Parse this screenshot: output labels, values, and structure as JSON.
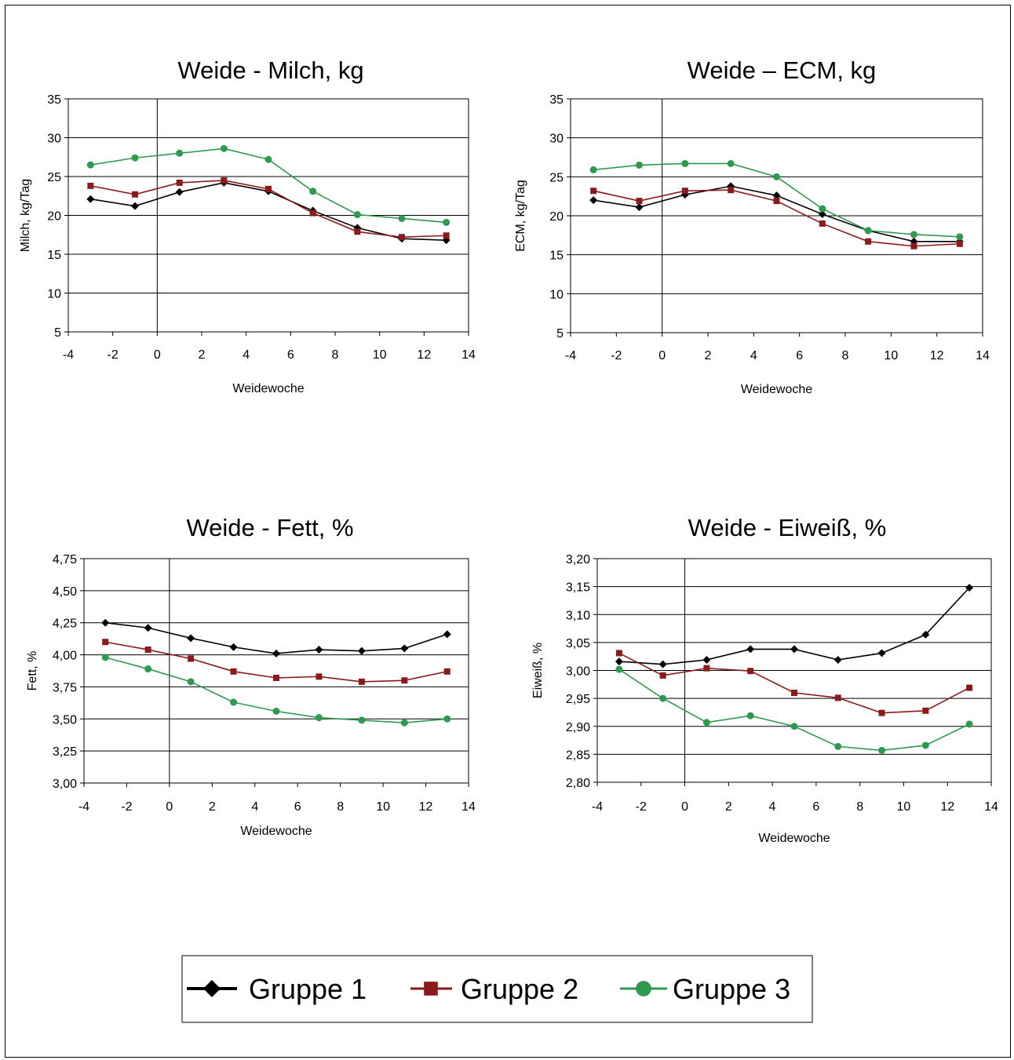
{
  "colors": {
    "gruppe1": "#000000",
    "gruppe2": "#8B1A1A",
    "gruppe3": "#2E9A4E"
  },
  "legend": [
    {
      "name": "Gruppe 1",
      "marker": "diamond",
      "color": "#000000"
    },
    {
      "name": "Gruppe 2",
      "marker": "square",
      "color": "#8B1A1A"
    },
    {
      "name": "Gruppe 3",
      "marker": "circle",
      "color": "#2E9A4E"
    }
  ],
  "chart_data": [
    {
      "type": "line",
      "title": "Weide - Milch, kg",
      "xlabel": "Weidewoche",
      "ylabel": "Milch, kg/Tag",
      "xlim": [
        -4,
        14
      ],
      "ylim": [
        5,
        35
      ],
      "xticks": [
        "-4",
        "-2",
        "0",
        "2",
        "4",
        "6",
        "8",
        "10",
        "12",
        "14"
      ],
      "yticks": [
        "5",
        "10",
        "15",
        "20",
        "25",
        "30",
        "35"
      ],
      "x": [
        -3,
        -1,
        1,
        3,
        5,
        7,
        9,
        11,
        13
      ],
      "grid": "horizontal",
      "series": [
        {
          "name": "Gruppe 1",
          "values": [
            22.1,
            21.2,
            23.0,
            24.2,
            23.1,
            20.6,
            18.4,
            17.0,
            16.8
          ]
        },
        {
          "name": "Gruppe 2",
          "values": [
            23.8,
            22.7,
            24.2,
            24.5,
            23.4,
            20.3,
            17.9,
            17.2,
            17.4
          ]
        },
        {
          "name": "Gruppe 3",
          "values": [
            26.5,
            27.4,
            28.0,
            28.6,
            27.2,
            23.1,
            20.1,
            19.6,
            19.1
          ]
        }
      ]
    },
    {
      "type": "line",
      "title": "Weide – ECM, kg",
      "xlabel": "Weidewoche",
      "ylabel": "ECM, kg/Tag",
      "xlim": [
        -4,
        14
      ],
      "ylim": [
        5,
        35
      ],
      "xticks": [
        "-4",
        "-2",
        "0",
        "2",
        "4",
        "6",
        "8",
        "10",
        "12",
        "14"
      ],
      "yticks": [
        "5",
        "10",
        "15",
        "20",
        "25",
        "30",
        "35"
      ],
      "x": [
        -3,
        -1,
        1,
        3,
        5,
        7,
        9,
        11,
        13
      ],
      "grid": "horizontal",
      "series": [
        {
          "name": "Gruppe 1",
          "values": [
            22.0,
            21.1,
            22.7,
            23.8,
            22.6,
            20.2,
            18.1,
            16.7,
            16.7
          ]
        },
        {
          "name": "Gruppe 2",
          "values": [
            23.2,
            21.9,
            23.2,
            23.3,
            21.9,
            19.0,
            16.7,
            16.1,
            16.4
          ]
        },
        {
          "name": "Gruppe 3",
          "values": [
            25.9,
            26.5,
            26.7,
            26.7,
            25.0,
            20.9,
            18.1,
            17.6,
            17.3
          ]
        }
      ]
    },
    {
      "type": "line",
      "title": "Weide - Fett, %",
      "xlabel": "Weidewoche",
      "ylabel": "Fett, %",
      "xlim": [
        -4,
        14
      ],
      "ylim": [
        3.0,
        4.75
      ],
      "xticks": [
        "-4",
        "-2",
        "0",
        "2",
        "4",
        "6",
        "8",
        "10",
        "12",
        "14"
      ],
      "yticks": [
        "3,00",
        "3,25",
        "3,50",
        "3,75",
        "4,00",
        "4,25",
        "4,50",
        "4,75"
      ],
      "x": [
        -3,
        -1,
        1,
        3,
        5,
        7,
        9,
        11,
        13
      ],
      "grid": "horizontal",
      "series": [
        {
          "name": "Gruppe 1",
          "values": [
            4.25,
            4.21,
            4.13,
            4.06,
            4.01,
            4.04,
            4.03,
            4.05,
            4.16
          ]
        },
        {
          "name": "Gruppe 2",
          "values": [
            4.1,
            4.04,
            3.97,
            3.87,
            3.82,
            3.83,
            3.79,
            3.8,
            3.87
          ]
        },
        {
          "name": "Gruppe 3",
          "values": [
            3.98,
            3.89,
            3.79,
            3.63,
            3.56,
            3.51,
            3.49,
            3.47,
            3.5
          ]
        }
      ]
    },
    {
      "type": "line",
      "title": "Weide - Eiweiß, %",
      "xlabel": "Weidewoche",
      "ylabel": "Eiweiß, %",
      "xlim": [
        -4,
        14
      ],
      "ylim": [
        2.8,
        3.2
      ],
      "xticks": [
        "-4",
        "-2",
        "0",
        "2",
        "4",
        "6",
        "8",
        "10",
        "12",
        "14"
      ],
      "yticks": [
        "2,80",
        "2,85",
        "2,90",
        "2,95",
        "3,00",
        "3,05",
        "3,10",
        "3,15",
        "3,20"
      ],
      "x": [
        -3,
        -1,
        1,
        3,
        5,
        7,
        9,
        11,
        13
      ],
      "grid": "horizontal",
      "series": [
        {
          "name": "Gruppe 1",
          "values": [
            3.016,
            3.011,
            3.019,
            3.038,
            3.038,
            3.019,
            3.031,
            3.064,
            3.148
          ]
        },
        {
          "name": "Gruppe 2",
          "values": [
            3.031,
            2.991,
            3.004,
            2.999,
            2.96,
            2.951,
            2.924,
            2.928,
            2.969
          ]
        },
        {
          "name": "Gruppe 3",
          "values": [
            3.002,
            2.95,
            2.907,
            2.919,
            2.9,
            2.864,
            2.857,
            2.866,
            2.904
          ]
        }
      ]
    }
  ]
}
